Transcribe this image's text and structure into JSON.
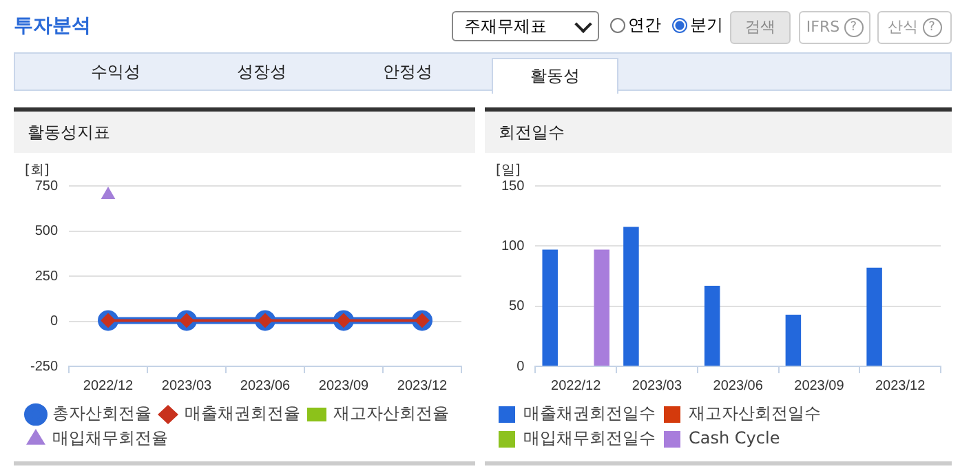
{
  "chart_data": [
    {
      "type": "line",
      "title": "활동성지표",
      "ylabel": "[회]",
      "categories": [
        "2022/12",
        "2023/03",
        "2023/06",
        "2023/09",
        "2023/12"
      ],
      "annotations": [
        "투자분석",
        "주재무제표",
        "연간",
        "분기",
        "검색",
        "IFRS",
        "?",
        "산식",
        "?",
        "수익성",
        "성장성",
        "안정성",
        "활동성"
      ],
      "series": [
        {
          "name": "총자산회전율",
          "color": "#2a6ad8",
          "marker": "circle",
          "values": [
            4,
            4,
            4,
            4,
            4
          ]
        },
        {
          "name": "매출채권회전율",
          "color": "#c8321e",
          "marker": "diamond",
          "values": [
            4,
            4,
            4,
            4,
            4
          ]
        },
        {
          "name": "재고자산회전율",
          "color": "#8cc21a",
          "marker": "square",
          "values": [
            null,
            null,
            null,
            null,
            null
          ]
        },
        {
          "name": "매입채무회전율",
          "color": "#a37fd9",
          "marker": "triangle",
          "values": [
            700,
            null,
            null,
            null,
            null
          ]
        }
      ],
      "ylim": [
        -250,
        750
      ],
      "yticks": [
        -250,
        0,
        250,
        500,
        750
      ],
      "grid": "y",
      "legend": "bottom"
    },
    {
      "type": "bar",
      "title": "회전일수",
      "ylabel": "[일]",
      "categories": [
        "2022/12",
        "2023/03",
        "2023/06",
        "2023/09",
        "2023/12"
      ],
      "series": [
        {
          "name": "매출채권회전일수",
          "color": "#2368dc",
          "values": [
            97,
            116,
            67,
            43,
            82
          ]
        },
        {
          "name": "재고자산회전일수",
          "color": "#d43a0c",
          "values": [
            null,
            null,
            null,
            null,
            null
          ]
        },
        {
          "name": "매입채무회전일수",
          "color": "#8dc21f",
          "values": [
            null,
            null,
            null,
            null,
            null
          ]
        },
        {
          "name": "Cash Cycle",
          "color": "#a87ddc",
          "values": [
            97,
            null,
            null,
            null,
            null
          ]
        }
      ],
      "ylim": [
        0,
        150
      ],
      "yticks": [
        0,
        50,
        100,
        150
      ],
      "grid": "y",
      "legend": "bottom"
    }
  ]
}
